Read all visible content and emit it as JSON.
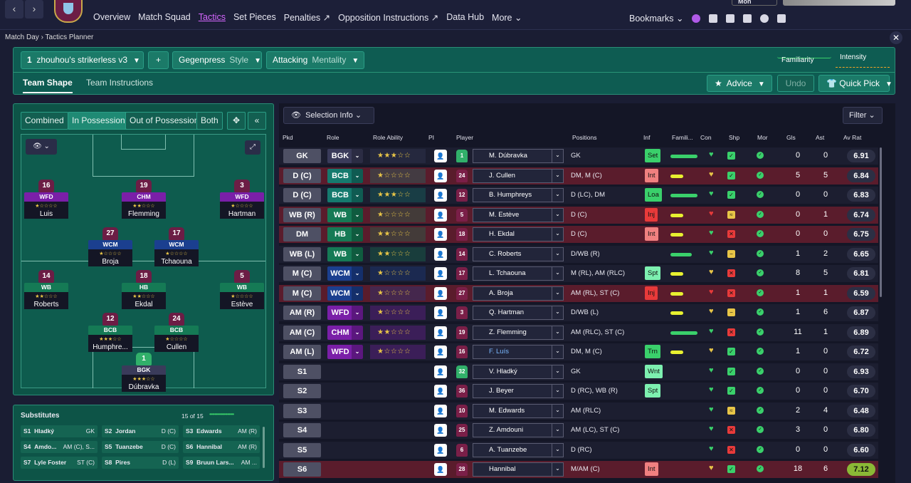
{
  "nav": {
    "back": "‹",
    "forward": "›"
  },
  "tabs": [
    {
      "label": "Overview"
    },
    {
      "label": "Match Squad"
    },
    {
      "label": "Tactics",
      "active": true
    },
    {
      "label": "Set Pieces"
    },
    {
      "label": "Penalties ↗"
    },
    {
      "label": "Opposition Instructions ↗"
    },
    {
      "label": "Data Hub"
    },
    {
      "label": "More ⌄"
    }
  ],
  "top_right": {
    "bookmarks": "Bookmarks",
    "date": "Mon"
  },
  "breadcrumb": {
    "a": "Match Day",
    "sep": "›",
    "b": "Tactics Planner"
  },
  "header": {
    "tactic_num": "1",
    "tactic_name": "zhouhou's strikerless v3",
    "add": "+",
    "style_value": "Gegenpress",
    "style_label": "Style",
    "mentality_value": "Attacking",
    "mentality_label": "Mentality",
    "familiarity": "Familiarity",
    "intensity": "Intensity",
    "subtab_shape": "Team Shape",
    "subtab_instr": "Team Instructions",
    "advice": "Advice",
    "undo": "Undo",
    "quick_pick": "Quick Pick"
  },
  "shape_tabs": [
    "Combined",
    "In Possession",
    "Out of Possession",
    "Both"
  ],
  "pitch_players": [
    {
      "num": "16",
      "role": "WFD",
      "cls": "wfd",
      "name": "Luis",
      "stars": "★☆☆☆☆"
    },
    {
      "num": "19",
      "role": "CHM",
      "cls": "chm",
      "name": "Flemming",
      "stars": "★★☆☆☆"
    },
    {
      "num": "3",
      "role": "WFD",
      "cls": "wfd",
      "name": "Hartman",
      "stars": "★☆☆☆☆"
    },
    {
      "num": "27",
      "role": "WCM",
      "cls": "wcm",
      "name": "Broja",
      "stars": "★☆☆☆☆"
    },
    {
      "num": "17",
      "role": "WCM",
      "cls": "wcm",
      "name": "Tchaouna",
      "stars": "★☆☆☆☆"
    },
    {
      "num": "14",
      "role": "WB",
      "cls": "wb",
      "name": "Roberts",
      "stars": "★★☆☆☆"
    },
    {
      "num": "18",
      "role": "HB",
      "cls": "hb",
      "name": "Ekdal",
      "stars": "★★☆☆☆"
    },
    {
      "num": "5",
      "role": "WB",
      "cls": "wb",
      "name": "Estève",
      "stars": "★☆☆☆☆"
    },
    {
      "num": "12",
      "role": "BCB",
      "cls": "bcb",
      "name": "Humphre...",
      "stars": "★★★☆☆"
    },
    {
      "num": "24",
      "role": "BCB",
      "cls": "bcb",
      "name": "Cullen",
      "stars": "★☆☆☆☆"
    },
    {
      "num": "1",
      "role": "BGK",
      "cls": "bgk",
      "name": "Dúbravka",
      "stars": "★★★☆☆",
      "gk": true
    }
  ],
  "subs": {
    "title": "Substitutes",
    "count": "15 of 15",
    "dots": "•••••••••••••••••••",
    "items": [
      {
        "slot": "S1",
        "name": "Hladký",
        "pos": "GK"
      },
      {
        "slot": "S2",
        "name": "Jordan",
        "pos": "D (C)"
      },
      {
        "slot": "S3",
        "name": "Edwards",
        "pos": "AM (R)"
      },
      {
        "slot": "S4",
        "name": "Amdo...",
        "pos": "AM (C), S..."
      },
      {
        "slot": "S5",
        "name": "Tuanzebe",
        "pos": "D (C)"
      },
      {
        "slot": "S6",
        "name": "Hannibal",
        "pos": "AM (R)"
      },
      {
        "slot": "S7",
        "name": "Lyle Foster",
        "pos": "ST (C)"
      },
      {
        "slot": "S8",
        "name": "Pires",
        "pos": "D (L)"
      },
      {
        "slot": "S9",
        "name": "Bruun Lars...",
        "pos": "AM ..."
      }
    ]
  },
  "table": {
    "selection_info": "Selection Info",
    "filter": "Filter",
    "headers": [
      "Pkd",
      "Role",
      "Role Ability",
      "PI",
      "Player",
      "Positions",
      "Inf",
      "Famili...",
      "Con",
      "Shp",
      "Mor",
      "Gls",
      "Ast",
      "Av Rat"
    ],
    "rows": [
      {
        "pkd": "GK",
        "role": "BGK",
        "rc": "#3a3b5a",
        "bg": "#1c1e30",
        "ra": "★★★☆☆",
        "num": "1",
        "gk": true,
        "player": "M. Dúbravka",
        "pos": "GK",
        "inf": "Set",
        "infc": "#3ad06b",
        "fam": 38,
        "famc": "#3ad06b",
        "heart": "#3ad06b",
        "shp": "✓",
        "shpc": "#3ad06b",
        "gls": "0",
        "ast": "0",
        "rat": "6.91"
      },
      {
        "pkd": "D (C)",
        "role": "BCB",
        "rc": "#157a6e",
        "bg": "#5a1c2c",
        "ra": "★☆☆☆☆",
        "num": "24",
        "player": "J. Cullen",
        "pos": "DM, M (C)",
        "inf": "Int",
        "infc": "#f08080",
        "fam": 18,
        "famc": "#e8f030",
        "heart": "#e8c547",
        "shp": "✓",
        "shpc": "#3ad06b",
        "gls": "5",
        "ast": "5",
        "rat": "6.84"
      },
      {
        "pkd": "D (C)",
        "role": "BCB",
        "rc": "#157a6e",
        "bg": "#1c1e30",
        "ra": "★★★☆☆",
        "num": "12",
        "player": "B. Humphreys",
        "pos": "D (LC), DM",
        "inf": "Loa",
        "infc": "#3ad06b",
        "fam": 38,
        "famc": "#3ad06b",
        "heart": "#3ad06b",
        "shp": "✓",
        "shpc": "#3ad06b",
        "gls": "0",
        "ast": "0",
        "rat": "6.83"
      },
      {
        "pkd": "WB (R)",
        "role": "WB",
        "rc": "#157a55",
        "bg": "#5a1c2c",
        "ra": "★☆☆☆☆",
        "num": "5",
        "player": "M. Estève",
        "pos": "D (C)",
        "inf": "Inj",
        "infc": "#e83a3a",
        "fam": 18,
        "famc": "#e8f030",
        "heart": "#e83a3a",
        "shp": "≈",
        "shpc": "#e8c547",
        "gls": "0",
        "ast": "1",
        "rat": "6.74"
      },
      {
        "pkd": "DM",
        "role": "HB",
        "rc": "#157a55",
        "bg": "#5a1c2c",
        "ra": "★★☆☆☆",
        "num": "18",
        "player": "H. Ekdal",
        "pos": "D (C)",
        "inf": "Int",
        "infc": "#f08080",
        "fam": 18,
        "famc": "#e8f030",
        "heart": "#3ad06b",
        "shp": "✕",
        "shpc": "#e83a3a",
        "gls": "0",
        "ast": "0",
        "rat": "6.75"
      },
      {
        "pkd": "WB (L)",
        "role": "WB",
        "rc": "#157a55",
        "bg": "#1c1e30",
        "ra": "★★☆☆☆",
        "num": "14",
        "player": "C. Roberts",
        "pos": "D/WB (R)",
        "inf": "",
        "infc": "",
        "fam": 30,
        "famc": "#3ad06b",
        "heart": "#3ad06b",
        "shp": "−",
        "shpc": "#e8c547",
        "gls": "1",
        "ast": "2",
        "rat": "6.65"
      },
      {
        "pkd": "M (C)",
        "role": "WCM",
        "rc": "#1b3f8f",
        "bg": "#1c1e30",
        "ra": "★☆☆☆☆",
        "num": "17",
        "player": "L. Tchaouna",
        "pos": "M (RL), AM (RLC)",
        "inf": "Spt",
        "infc": "#7df0b0",
        "fam": 18,
        "famc": "#e8f030",
        "heart": "#e8c547",
        "shp": "✕",
        "shpc": "#e83a3a",
        "gls": "8",
        "ast": "5",
        "rat": "6.81"
      },
      {
        "pkd": "M (C)",
        "role": "WCM",
        "rc": "#1b3f8f",
        "bg": "#5a1c2c",
        "ra": "★☆☆☆☆",
        "num": "27",
        "player": "A. Broja",
        "pos": "AM (RL), ST (C)",
        "inf": "Inj",
        "infc": "#e83a3a",
        "fam": 18,
        "famc": "#e8f030",
        "heart": "#e83a3a",
        "shp": "✕",
        "shpc": "#e83a3a",
        "gls": "1",
        "ast": "1",
        "rat": "6.59"
      },
      {
        "pkd": "AM (R)",
        "role": "WFD",
        "rc": "#7a1fa8",
        "bg": "#1c1e30",
        "ra": "★☆☆☆☆",
        "num": "3",
        "player": "Q. Hartman",
        "pos": "D/WB (L)",
        "inf": "",
        "infc": "",
        "fam": 18,
        "famc": "#e8f030",
        "heart": "#e8c547",
        "shp": "−",
        "shpc": "#e8c547",
        "gls": "1",
        "ast": "6",
        "rat": "6.87"
      },
      {
        "pkd": "AM (C)",
        "role": "CHM",
        "rc": "#7a1fa8",
        "bg": "#1c1e30",
        "ra": "★★☆☆☆",
        "num": "19",
        "player": "Z. Flemming",
        "pos": "AM (RLC), ST (C)",
        "inf": "",
        "infc": "",
        "fam": 38,
        "famc": "#3ad06b",
        "heart": "#3ad06b",
        "shp": "✕",
        "shpc": "#e83a3a",
        "gls": "11",
        "ast": "1",
        "rat": "6.89"
      },
      {
        "pkd": "AM (L)",
        "role": "WFD",
        "rc": "#7a1fa8",
        "bg": "#1c1e30",
        "ra": "★☆☆☆☆",
        "num": "16",
        "player": "F. Luís",
        "pos": "DM, M (C)",
        "inf": "Trn",
        "infc": "#3ad06b",
        "fam": 18,
        "famc": "#e8f030",
        "heart": "#e8c547",
        "shp": "✓",
        "shpc": "#3ad06b",
        "gls": "1",
        "ast": "0",
        "rat": "6.72",
        "blue": true
      },
      {
        "pkd": "S1",
        "role": "",
        "rc": "",
        "bg": "#1c1e30",
        "ra": "",
        "num": "32",
        "gk": true,
        "player": "V. Hladký",
        "pos": "GK",
        "inf": "Wnt",
        "infc": "#7df0b0",
        "fam": 0,
        "famc": "",
        "heart": "#3ad06b",
        "shp": "✓",
        "shpc": "#3ad06b",
        "gls": "0",
        "ast": "0",
        "rat": "6.93"
      },
      {
        "pkd": "S2",
        "role": "",
        "rc": "",
        "bg": "#1c1e30",
        "ra": "",
        "num": "36",
        "player": "J. Beyer",
        "pos": "D (RC), WB (R)",
        "inf": "Spt",
        "infc": "#7df0b0",
        "fam": 0,
        "famc": "",
        "heart": "#3ad06b",
        "shp": "✓",
        "shpc": "#3ad06b",
        "gls": "0",
        "ast": "0",
        "rat": "6.70"
      },
      {
        "pkd": "S3",
        "role": "",
        "rc": "",
        "bg": "#1c1e30",
        "ra": "",
        "num": "10",
        "player": "M. Edwards",
        "pos": "AM (RLC)",
        "inf": "",
        "infc": "",
        "fam": 0,
        "famc": "",
        "heart": "#3ad06b",
        "shp": "≈",
        "shpc": "#e8c547",
        "gls": "2",
        "ast": "4",
        "rat": "6.48"
      },
      {
        "pkd": "S4",
        "role": "",
        "rc": "",
        "bg": "#1c1e30",
        "ra": "",
        "num": "25",
        "player": "Z. Amdouni",
        "pos": "AM (LC), ST (C)",
        "inf": "",
        "infc": "",
        "fam": 0,
        "famc": "",
        "heart": "#3ad06b",
        "shp": "✕",
        "shpc": "#e83a3a",
        "gls": "3",
        "ast": "0",
        "rat": "6.80"
      },
      {
        "pkd": "S5",
        "role": "",
        "rc": "",
        "bg": "#1c1e30",
        "ra": "",
        "num": "6",
        "player": "A. Tuanzebe",
        "pos": "D (RC)",
        "inf": "",
        "infc": "",
        "fam": 0,
        "famc": "",
        "heart": "#3ad06b",
        "shp": "✕",
        "shpc": "#e83a3a",
        "gls": "0",
        "ast": "0",
        "rat": "6.60"
      },
      {
        "pkd": "S6",
        "role": "",
        "rc": "",
        "bg": "#5a1c2c",
        "ra": "",
        "num": "28",
        "player": "Hannibal",
        "pos": "M/AM (C)",
        "inf": "Int",
        "infc": "#f08080",
        "fam": 0,
        "famc": "",
        "heart": "#e8c547",
        "shp": "✓",
        "shpc": "#3ad06b",
        "gls": "18",
        "ast": "6",
        "rat": "7.12",
        "hi": true
      }
    ]
  }
}
